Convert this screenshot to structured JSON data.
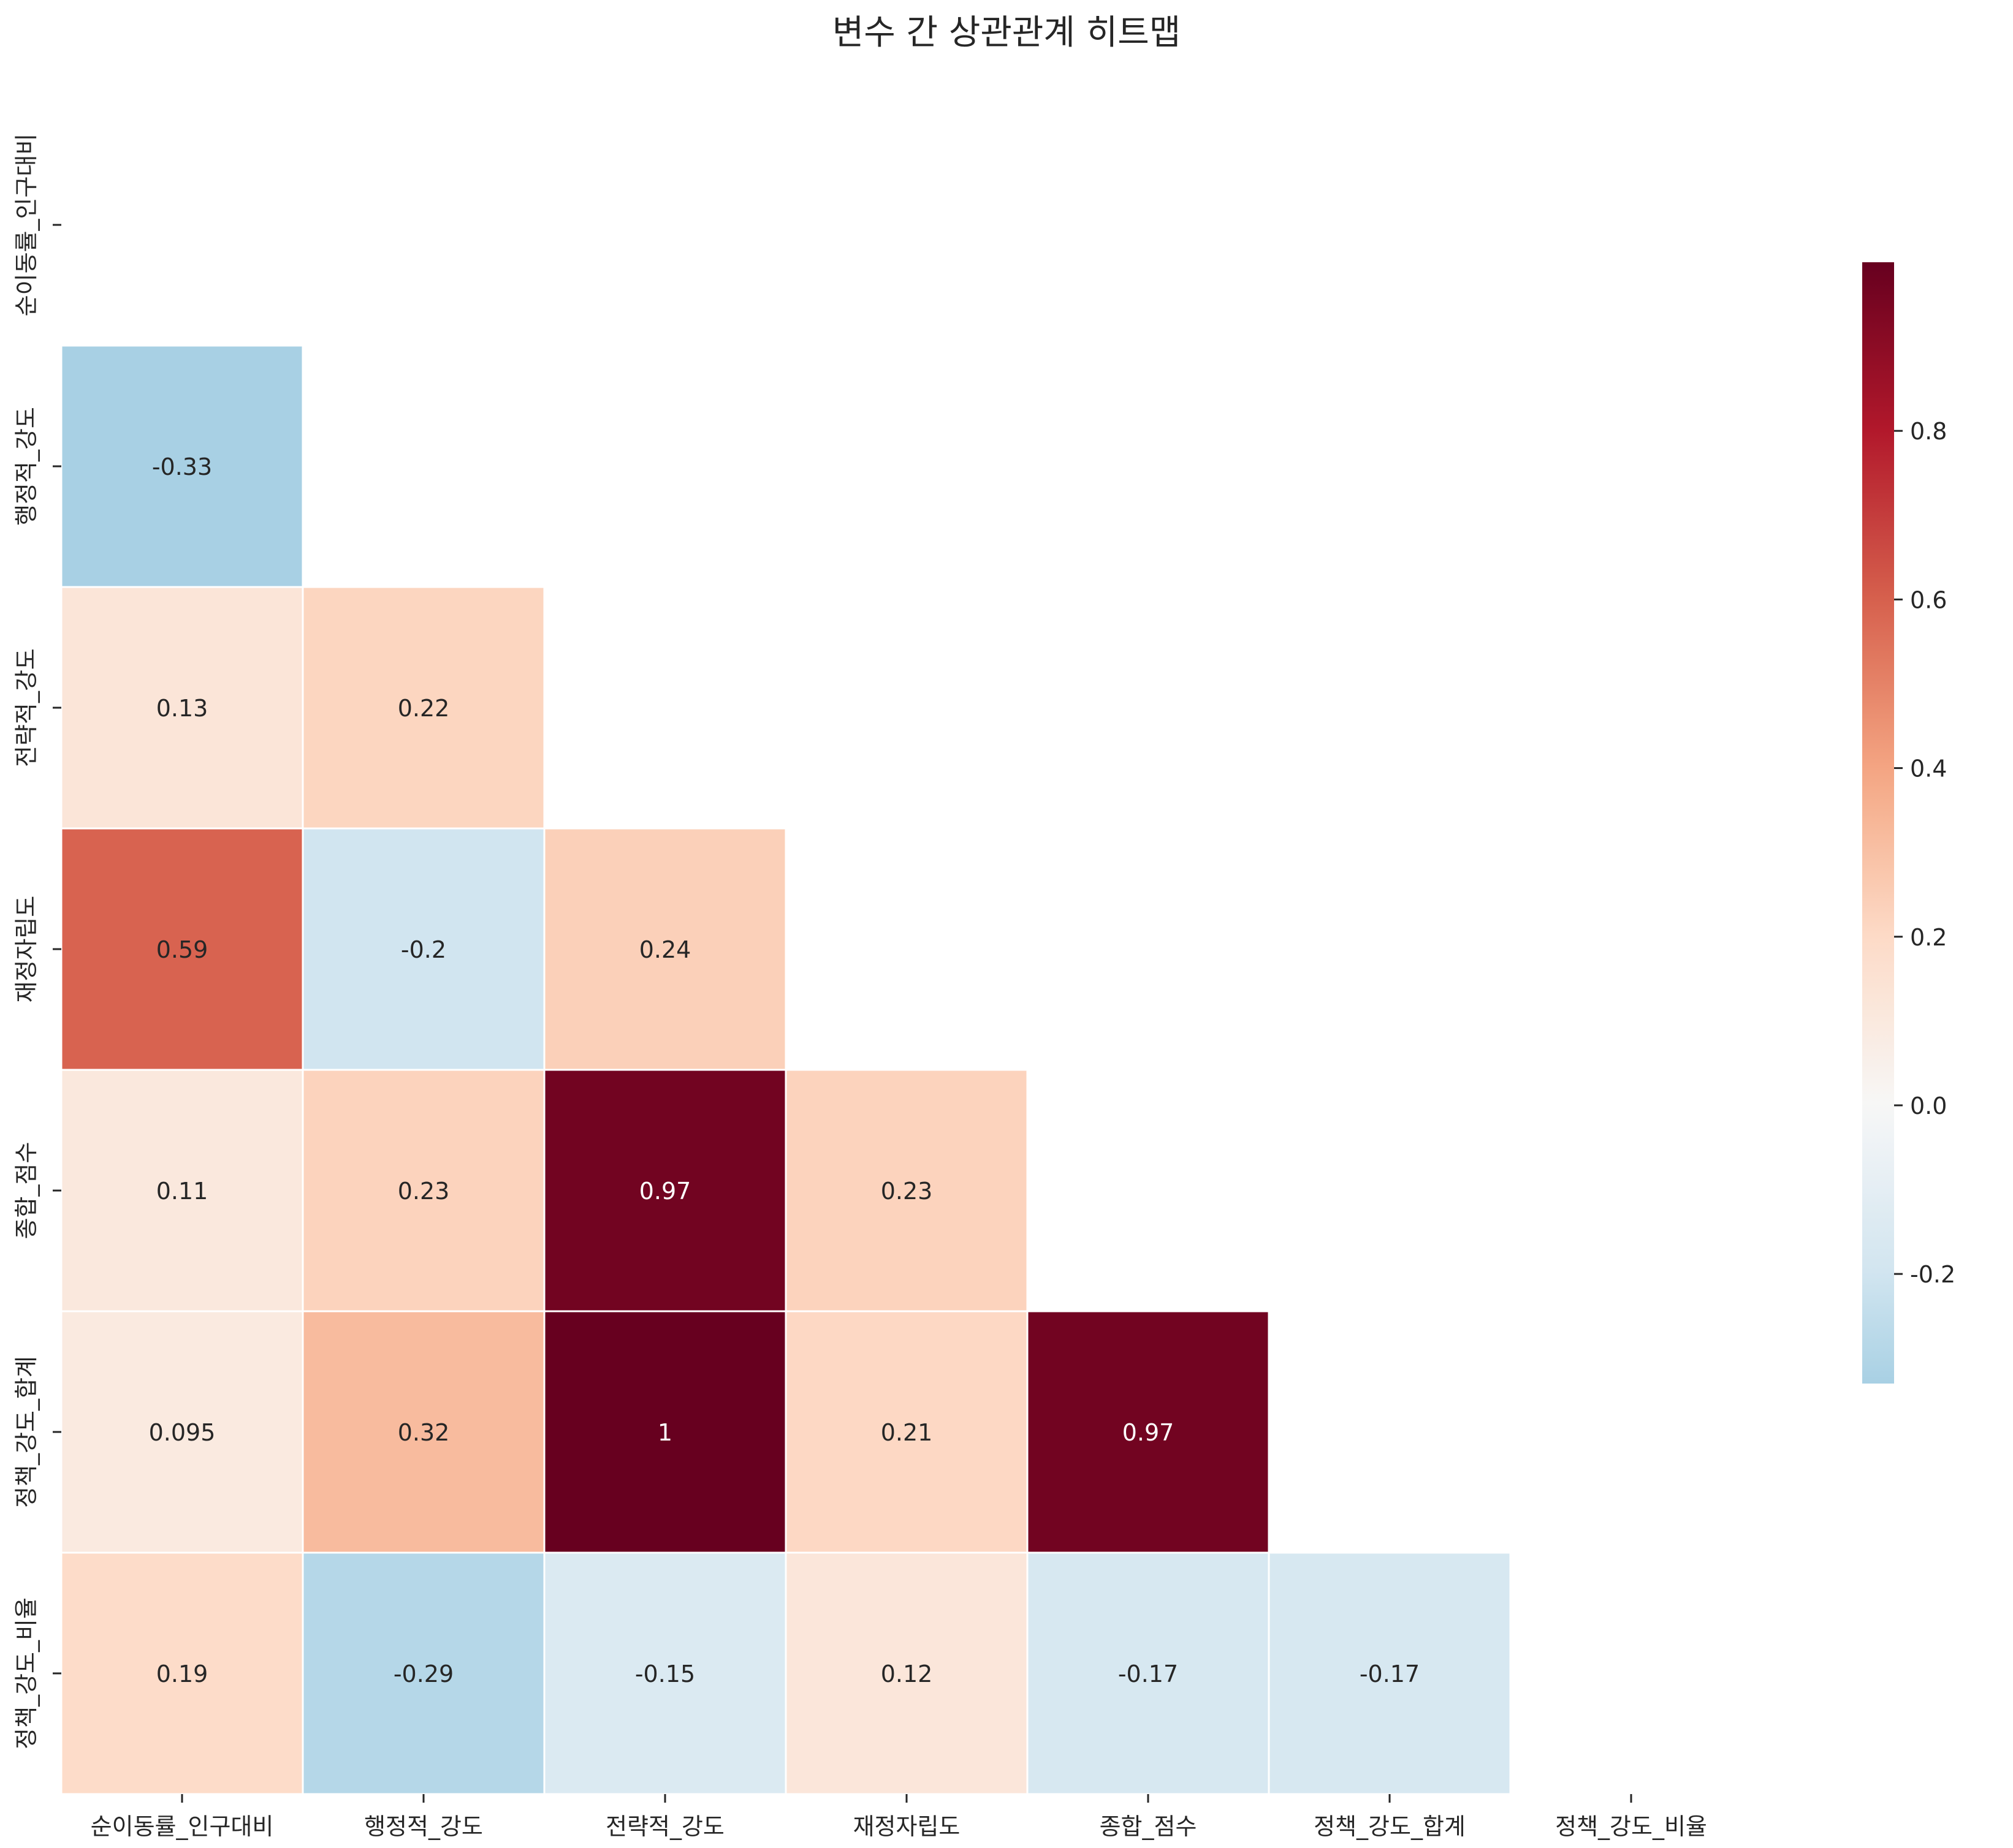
{
  "chart_data": {
    "type": "heatmap",
    "title": "변수 간 상관관계 히트맵",
    "variables": [
      "순이동률_인구대비",
      "행정적_강도",
      "전략적_강도",
      "재정자립도",
      "종합_점수",
      "정책_강도_합계",
      "정책_강도_비율"
    ],
    "mask": "upper-triangle-including-diagonal",
    "matrix": [
      [
        null,
        null,
        null,
        null,
        null,
        null,
        null
      ],
      [
        -0.33,
        null,
        null,
        null,
        null,
        null,
        null
      ],
      [
        0.13,
        0.22,
        null,
        null,
        null,
        null,
        null
      ],
      [
        0.59,
        -0.2,
        0.24,
        null,
        null,
        null,
        null
      ],
      [
        0.11,
        0.23,
        0.97,
        0.23,
        null,
        null,
        null
      ],
      [
        0.095,
        0.32,
        1,
        0.21,
        0.97,
        null,
        null
      ],
      [
        0.19,
        -0.29,
        -0.15,
        0.12,
        -0.17,
        -0.17,
        null
      ]
    ],
    "annotations": [
      [
        null,
        null,
        null,
        null,
        null,
        null,
        null
      ],
      [
        "-0.33",
        null,
        null,
        null,
        null,
        null,
        null
      ],
      [
        "0.13",
        "0.22",
        null,
        null,
        null,
        null,
        null
      ],
      [
        "0.59",
        "-0.2",
        "0.24",
        null,
        null,
        null,
        null
      ],
      [
        "0.11",
        "0.23",
        "0.97",
        "0.23",
        null,
        null,
        null
      ],
      [
        "0.095",
        "0.32",
        "1",
        "0.21",
        "0.97",
        null,
        null
      ],
      [
        "0.19",
        "-0.29",
        "-0.15",
        "0.12",
        "-0.17",
        "-0.17",
        null
      ]
    ],
    "colormap": "RdBu_r",
    "center": 0,
    "vmin": -0.33,
    "vmax": 1,
    "colorbar": {
      "ticks": [
        -0.2,
        0,
        0.2,
        0.4,
        0.6,
        0.8
      ],
      "tick_labels": [
        "-0.2",
        "0.0",
        "0.2",
        "0.4",
        "0.6",
        "0.8"
      ],
      "placement": "right"
    },
    "grid": false
  }
}
